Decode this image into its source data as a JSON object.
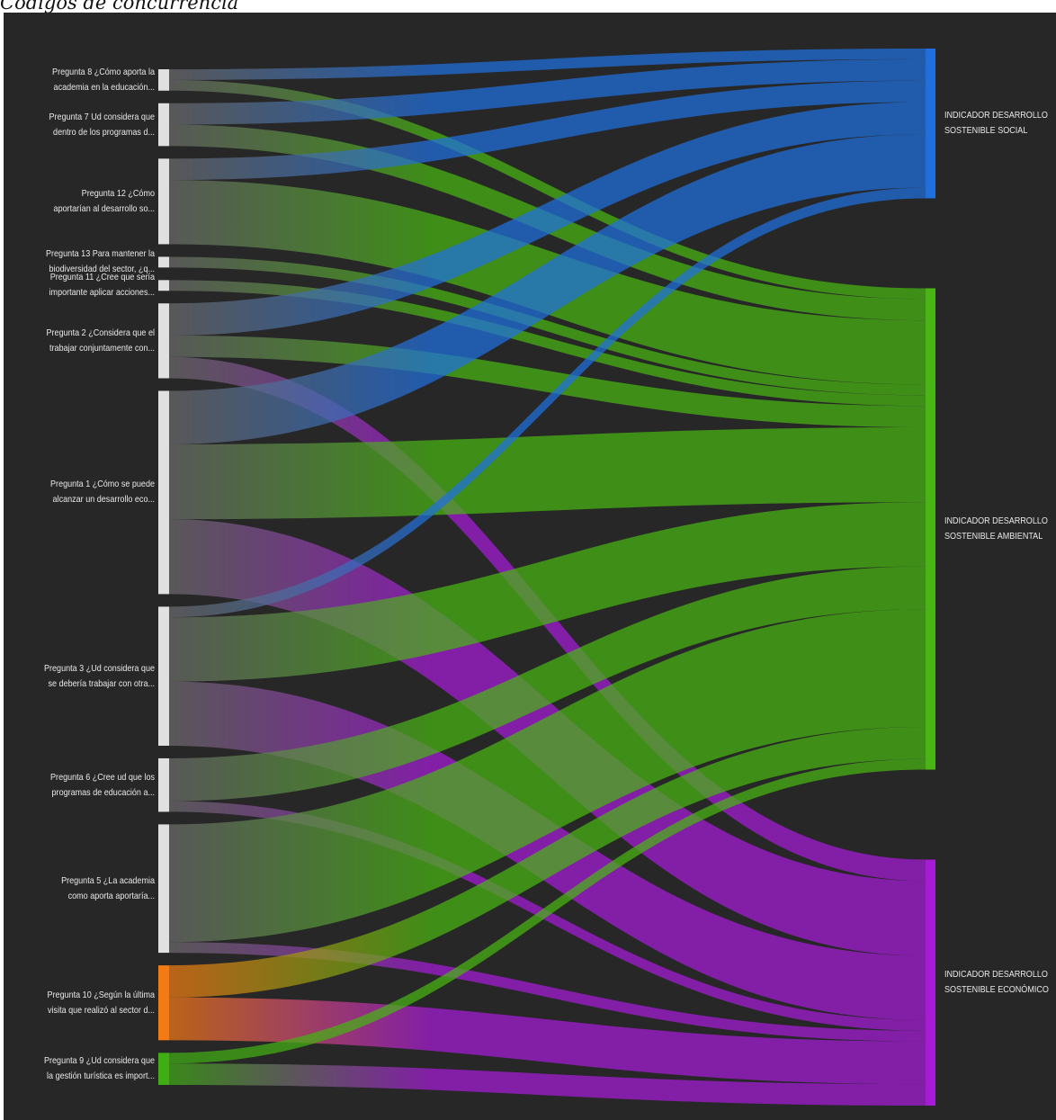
{
  "caption": "Códigos de concurrencia",
  "colors": {
    "background": "#272727",
    "source_node": "#e0e0e0",
    "social": "#1f6fe0",
    "ambiental": "#47b512",
    "economico": "#a61ad8",
    "p10": "#f47a13",
    "p9": "#41ad14"
  },
  "chart_data": {
    "type": "sankey",
    "sources": [
      {
        "id": "p8",
        "lines": [
          "Pregunta 8 ¿Cómo aporta la",
          "academia en la educación..."
        ],
        "color": "source_node"
      },
      {
        "id": "p7",
        "lines": [
          "Pregunta 7 Ud considera que",
          "dentro de los programas d..."
        ],
        "color": "source_node"
      },
      {
        "id": "p12",
        "lines": [
          "Pregunta 12 ¿Cómo",
          "aportarían al desarrollo so..."
        ],
        "color": "source_node"
      },
      {
        "id": "p13",
        "lines": [
          "Pregunta 13 Para mantener la",
          "biodiversidad del sector, ¿q..."
        ],
        "color": "source_node"
      },
      {
        "id": "p11",
        "lines": [
          "Pregunta 11 ¿Cree que sería",
          "importante aplicar acciones..."
        ],
        "color": "source_node"
      },
      {
        "id": "p2",
        "lines": [
          "Pregunta 2 ¿Considera que el",
          "trabajar conjuntamente con..."
        ],
        "color": "source_node"
      },
      {
        "id": "p1",
        "lines": [
          "Pregunta 1 ¿Cómo se puede",
          "alcanzar un desarrollo eco..."
        ],
        "color": "source_node"
      },
      {
        "id": "p3",
        "lines": [
          "Pregunta 3 ¿Ud considera que",
          "se debería trabajar con otra..."
        ],
        "color": "source_node"
      },
      {
        "id": "p6",
        "lines": [
          "Pregunta 6 ¿Cree ud que los",
          "programas de educación a..."
        ],
        "color": "source_node"
      },
      {
        "id": "p5",
        "lines": [
          "Pregunta 5 ¿La academia",
          "como aporta aportaría..."
        ],
        "color": "source_node"
      },
      {
        "id": "p10",
        "lines": [
          "Pregunta 10 ¿Según la última",
          "visita que realizó al sector d..."
        ],
        "color": "p10"
      },
      {
        "id": "p9",
        "lines": [
          "Pregunta 9 ¿Ud considera que",
          "la gestión turística es import..."
        ],
        "color": "p9"
      }
    ],
    "targets": [
      {
        "id": "soc",
        "lines": [
          "INDICADOR DESARROLLO",
          "SOSTENIBLE SOCIAL"
        ],
        "color": "social"
      },
      {
        "id": "amb",
        "lines": [
          "INDICADOR DESARROLLO",
          "SOSTENIBLE AMBIENTAL"
        ],
        "color": "ambiental"
      },
      {
        "id": "eco",
        "lines": [
          "INDICADOR DESARROLLO",
          "SOSTENIBLE ECONÓMICO"
        ],
        "color": "economico"
      }
    ],
    "links": [
      {
        "source": "p8",
        "target": "soc",
        "value": 1
      },
      {
        "source": "p8",
        "target": "amb",
        "value": 1
      },
      {
        "source": "p7",
        "target": "soc",
        "value": 2
      },
      {
        "source": "p7",
        "target": "amb",
        "value": 2
      },
      {
        "source": "p12",
        "target": "soc",
        "value": 2
      },
      {
        "source": "p12",
        "target": "amb",
        "value": 6
      },
      {
        "source": "p13",
        "target": "amb",
        "value": 1
      },
      {
        "source": "p11",
        "target": "amb",
        "value": 1
      },
      {
        "source": "p2",
        "target": "soc",
        "value": 3
      },
      {
        "source": "p2",
        "target": "amb",
        "value": 2
      },
      {
        "source": "p2",
        "target": "eco",
        "value": 2
      },
      {
        "source": "p1",
        "target": "soc",
        "value": 5
      },
      {
        "source": "p1",
        "target": "amb",
        "value": 7
      },
      {
        "source": "p1",
        "target": "eco",
        "value": 7
      },
      {
        "source": "p3",
        "target": "soc",
        "value": 1
      },
      {
        "source": "p3",
        "target": "amb",
        "value": 6
      },
      {
        "source": "p3",
        "target": "eco",
        "value": 6
      },
      {
        "source": "p6",
        "target": "amb",
        "value": 4
      },
      {
        "source": "p6",
        "target": "eco",
        "value": 1
      },
      {
        "source": "p5",
        "target": "amb",
        "value": 11
      },
      {
        "source": "p5",
        "target": "eco",
        "value": 1
      },
      {
        "source": "p10",
        "target": "amb",
        "value": 3
      },
      {
        "source": "p10",
        "target": "eco",
        "value": 4
      },
      {
        "source": "p9",
        "target": "amb",
        "value": 1
      },
      {
        "source": "p9",
        "target": "eco",
        "value": 2
      }
    ]
  }
}
